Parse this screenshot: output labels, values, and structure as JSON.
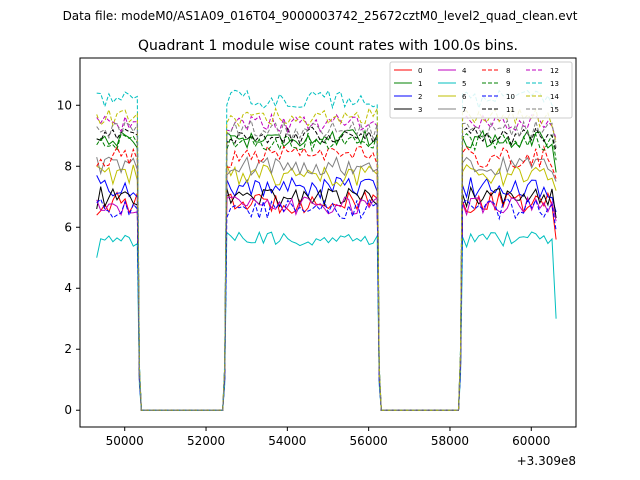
{
  "figure": {
    "suptitle": "Data file: modeM0/AS1A09_016T04_9000003742_25672cztM0_level2_quad_clean.evt"
  },
  "chart_data": {
    "type": "line",
    "title": "Quadrant 1 module wise count rates with 100.0s bins.",
    "xlabel": "",
    "ylabel": "",
    "x_offset_label": "+3.309e8",
    "xlim": [
      48900,
      61100
    ],
    "ylim": [
      -0.55,
      11.55
    ],
    "xticks": [
      50000,
      52000,
      54000,
      56000,
      58000,
      60000
    ],
    "yticks": [
      0,
      2,
      4,
      6,
      8,
      10
    ],
    "grid": false,
    "legend": {
      "position": "top-right",
      "ncol": 4
    },
    "segments": [
      {
        "start": 49310,
        "end": 50310
      },
      {
        "start": 52510,
        "end": 56210
      },
      {
        "start": 58310,
        "end": 60610
      }
    ],
    "gaps": [
      {
        "start": 50410,
        "end": 52410
      },
      {
        "start": 56310,
        "end": 58210
      }
    ],
    "edge_values": {
      "x": [
        49310,
        50410,
        52410,
        52510,
        56210,
        56310,
        58210,
        58310,
        60510,
        60610
      ],
      "note_values": "modules drop to 0 counts/s during gaps"
    },
    "series": [
      {
        "name": "0",
        "color": "#ff0000",
        "dash": "solid",
        "level": 6.8,
        "noise": 0.35,
        "first": 6.4,
        "last": 5.6
      },
      {
        "name": "1",
        "color": "#008000",
        "dash": "solid",
        "level": 8.9,
        "noise": 0.3,
        "first": 8.9,
        "last": 7.8
      },
      {
        "name": "2",
        "color": "#0000ff",
        "dash": "solid",
        "level": 7.3,
        "noise": 0.35,
        "first": 7.7,
        "last": 6.5
      },
      {
        "name": "3",
        "color": "#000000",
        "dash": "solid",
        "level": 7.0,
        "noise": 0.35,
        "first": 6.6,
        "last": 6.3
      },
      {
        "name": "4",
        "color": "#bf00bf",
        "dash": "solid",
        "level": 6.7,
        "noise": 0.3,
        "first": 6.9,
        "last": 6.2
      },
      {
        "name": "5",
        "color": "#00bfbf",
        "dash": "solid",
        "level": 5.6,
        "noise": 0.25,
        "first": 5.0,
        "last": 3.0
      },
      {
        "name": "6",
        "color": "#bfbf00",
        "dash": "solid",
        "level": 7.7,
        "noise": 0.35,
        "first": 8.0,
        "last": 7.2
      },
      {
        "name": "7",
        "color": "#808080",
        "dash": "solid",
        "level": 8.0,
        "noise": 0.3,
        "first": 8.3,
        "last": 7.5
      },
      {
        "name": "8",
        "color": "#ff0000",
        "dash": "dashed",
        "level": 8.3,
        "noise": 0.35,
        "first": 8.0,
        "last": 7.6
      },
      {
        "name": "9",
        "color": "#008000",
        "dash": "dashed",
        "level": 8.8,
        "noise": 0.3,
        "first": 8.7,
        "last": 8.2
      },
      {
        "name": "10",
        "color": "#0000ff",
        "dash": "dashed",
        "level": 6.6,
        "noise": 0.35,
        "first": 6.8,
        "last": 5.9
      },
      {
        "name": "11",
        "color": "#000000",
        "dash": "dashed",
        "level": 9.0,
        "noise": 0.3,
        "first": 8.9,
        "last": 8.5
      },
      {
        "name": "12",
        "color": "#bf00bf",
        "dash": "dashed",
        "level": 9.4,
        "noise": 0.3,
        "first": 9.6,
        "last": 8.9
      },
      {
        "name": "13",
        "color": "#00bfbf",
        "dash": "dashed",
        "level": 10.2,
        "noise": 0.3,
        "first": 10.4,
        "last": 9.9
      },
      {
        "name": "14",
        "color": "#bfbf00",
        "dash": "dashed",
        "level": 9.6,
        "noise": 0.3,
        "first": 9.7,
        "last": 8.8
      },
      {
        "name": "15",
        "color": "#808080",
        "dash": "dashed",
        "level": 9.2,
        "noise": 0.3,
        "first": 9.3,
        "last": 8.6
      }
    ]
  }
}
